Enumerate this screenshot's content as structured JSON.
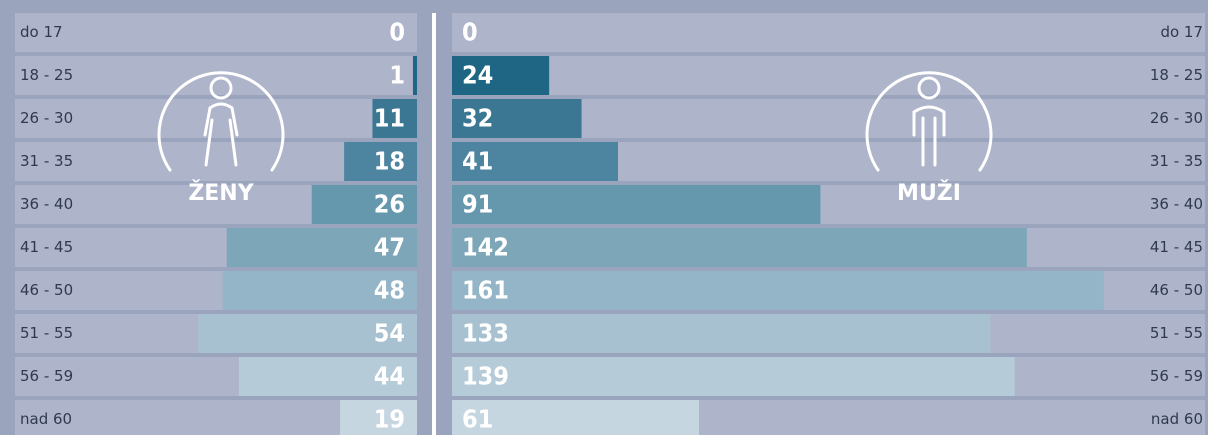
{
  "chart_data": {
    "type": "bar",
    "categories": [
      "do 17",
      "18 - 25",
      "26 - 30",
      "31 - 35",
      "36 - 40",
      "41 - 45",
      "46 - 50",
      "51 - 55",
      "56 - 59",
      "nad 60"
    ],
    "colors": [
      "#aeb4c9",
      "#1f6584",
      "#3b7692",
      "#4d84a0",
      "#6598ad",
      "#7ea6b9",
      "#93b5c7",
      "#a8c1d0",
      "#b5cbd7",
      "#c6d6e1"
    ],
    "series": [
      {
        "name": "ŽENY",
        "values": [
          0,
          1,
          11,
          18,
          26,
          47,
          48,
          54,
          44,
          19
        ]
      },
      {
        "name": "MUŽI",
        "values": [
          0,
          24,
          32,
          41,
          91,
          142,
          161,
          133,
          139,
          61
        ]
      }
    ],
    "xlim": [
      0,
      186
    ]
  }
}
